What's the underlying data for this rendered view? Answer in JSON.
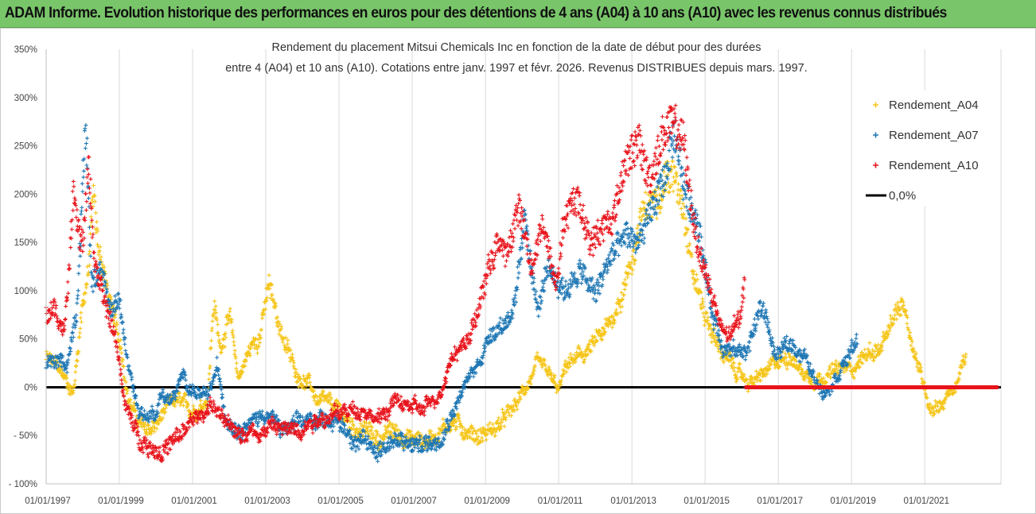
{
  "banner": {
    "title": "ADAM Informe. Evolution historique des performances en euros pour des détentions de 4 ans (A04) à 10 ans (A10) avec les revenus connus distribués"
  },
  "colors": {
    "banner_bg": "#79c66a",
    "A04": "#f5c518",
    "A07": "#1f77b4",
    "A10": "#e8141c",
    "zero_line": "#000000"
  },
  "chart_data": {
    "type": "scatter",
    "title_lines": [
      "Rendement du placement Mitsui Chemicals Inc en fonction de la date de début pour des durées",
      "entre 4 (A04) et 10 ans (A10). Cotations entre janv. 1997 et févr. 2026. Revenus DISTRIBUES depuis mars. 1997."
    ],
    "x_ticks": [
      "01/01/1997",
      "01/01/1999",
      "01/01/2001",
      "01/01/2003",
      "01/01/2005",
      "01/01/2007",
      "01/01/2009",
      "01/01/2011",
      "01/01/2013",
      "01/01/2015",
      "01/01/2017",
      "01/01/2019",
      "01/01/2021"
    ],
    "xlim": [
      "1997-01-01",
      "2023-01-31"
    ],
    "y_ticks": [
      "- 100%",
      "- 50%",
      "0%",
      "50%",
      "100%",
      "150%",
      "200%",
      "250%",
      "300%",
      "350%"
    ],
    "ylim": [
      -100,
      350
    ],
    "grid": "vertical",
    "legend_position": "top-right",
    "legend": [
      "Rendement_A04",
      "Rendement_A07",
      "Rendement_A10",
      "0,0%"
    ],
    "series": [
      {
        "name": "Rendement_A04",
        "x_start": "1997-01-01",
        "x_end": "2022-02-15",
        "points": [
          [
            "1997-01-01",
            30
          ],
          [
            "1997-05-01",
            20
          ],
          [
            "1997-08-01",
            5
          ],
          [
            "1997-10-01",
            -5
          ],
          [
            "1998-01-01",
            90
          ],
          [
            "1998-03-01",
            120
          ],
          [
            "1998-04-15",
            200
          ],
          [
            "1998-06-01",
            150
          ],
          [
            "1998-09-01",
            100
          ],
          [
            "1998-12-01",
            60
          ],
          [
            "1999-01-15",
            45
          ],
          [
            "1999-04-01",
            -10
          ],
          [
            "1999-07-01",
            -35
          ],
          [
            "1999-10-01",
            -45
          ],
          [
            "2000-01-01",
            -40
          ],
          [
            "2000-04-01",
            -25
          ],
          [
            "2000-08-01",
            -15
          ],
          [
            "2000-12-01",
            -25
          ],
          [
            "2001-03-01",
            -20
          ],
          [
            "2001-06-01",
            -10
          ],
          [
            "2001-08-01",
            90
          ],
          [
            "2001-10-01",
            40
          ],
          [
            "2002-01-01",
            75
          ],
          [
            "2002-04-01",
            10
          ],
          [
            "2002-08-01",
            40
          ],
          [
            "2002-11-01",
            55
          ],
          [
            "2003-02-01",
            105
          ],
          [
            "2003-05-01",
            70
          ],
          [
            "2003-08-01",
            40
          ],
          [
            "2003-11-01",
            15
          ],
          [
            "2004-03-01",
            5
          ],
          [
            "2004-06-01",
            -15
          ],
          [
            "2004-10-01",
            -20
          ],
          [
            "2005-01-01",
            -25
          ],
          [
            "2005-05-01",
            -40
          ],
          [
            "2005-10-01",
            -45
          ],
          [
            "2006-02-01",
            -55
          ],
          [
            "2006-06-01",
            -45
          ],
          [
            "2006-10-01",
            -50
          ],
          [
            "2007-02-01",
            -55
          ],
          [
            "2007-06-01",
            -55
          ],
          [
            "2007-10-01",
            -45
          ],
          [
            "2008-02-01",
            -35
          ],
          [
            "2008-07-01",
            -45
          ],
          [
            "2008-11-01",
            -50
          ],
          [
            "2009-03-01",
            -45
          ],
          [
            "2009-07-01",
            -35
          ],
          [
            "2009-11-01",
            -20
          ],
          [
            "2010-03-01",
            5
          ],
          [
            "2010-06-01",
            20
          ],
          [
            "2010-09-01",
            15
          ],
          [
            "2011-01-01",
            -5
          ],
          [
            "2011-04-01",
            25
          ],
          [
            "2011-08-01",
            30
          ],
          [
            "2012-01-01",
            45
          ],
          [
            "2012-05-01",
            60
          ],
          [
            "2012-09-01",
            90
          ],
          [
            "2013-01-01",
            130
          ],
          [
            "2013-04-01",
            175
          ],
          [
            "2013-08-01",
            190
          ],
          [
            "2013-12-01",
            220
          ],
          [
            "2014-03-01",
            215
          ],
          [
            "2014-06-01",
            190
          ],
          [
            "2014-09-01",
            120
          ],
          [
            "2015-01-01",
            75
          ],
          [
            "2015-05-01",
            45
          ],
          [
            "2015-09-01",
            25
          ],
          [
            "2016-01-01",
            10
          ],
          [
            "2016-05-01",
            5
          ],
          [
            "2016-09-01",
            15
          ],
          [
            "2017-01-01",
            25
          ],
          [
            "2017-05-01",
            35
          ],
          [
            "2017-09-01",
            15
          ],
          [
            "2018-01-01",
            10
          ],
          [
            "2018-06-01",
            15
          ],
          [
            "2019-01-01",
            20
          ],
          [
            "2019-06-01",
            35
          ],
          [
            "2019-11-01",
            40
          ],
          [
            "2020-03-01",
            70
          ],
          [
            "2020-06-01",
            90
          ],
          [
            "2020-09-01",
            45
          ],
          [
            "2020-12-01",
            10
          ],
          [
            "2021-03-01",
            -20
          ],
          [
            "2021-07-01",
            -15
          ],
          [
            "2021-11-01",
            0
          ],
          [
            "2022-02-15",
            30
          ]
        ]
      },
      {
        "name": "Rendement_A07",
        "x_start": "1997-01-01",
        "x_end": "2019-03-01",
        "points": [
          [
            "1997-01-01",
            25
          ],
          [
            "1997-05-01",
            25
          ],
          [
            "1997-08-01",
            25
          ],
          [
            "1997-11-01",
            80
          ],
          [
            "1998-02-01",
            275
          ],
          [
            "1998-04-01",
            110
          ],
          [
            "1998-07-01",
            115
          ],
          [
            "1998-10-01",
            80
          ],
          [
            "1999-01-01",
            90
          ],
          [
            "1999-04-01",
            20
          ],
          [
            "1999-07-01",
            -20
          ],
          [
            "1999-10-01",
            -30
          ],
          [
            "2000-01-01",
            -25
          ],
          [
            "2000-03-01",
            -5
          ],
          [
            "2000-06-01",
            -15
          ],
          [
            "2000-10-01",
            10
          ],
          [
            "2001-02-01",
            -5
          ],
          [
            "2001-06-01",
            -15
          ],
          [
            "2001-09-01",
            20
          ],
          [
            "2001-12-01",
            -30
          ],
          [
            "2002-04-01",
            -40
          ],
          [
            "2002-09-01",
            -35
          ],
          [
            "2003-01-01",
            -25
          ],
          [
            "2003-06-01",
            -45
          ],
          [
            "2003-11-01",
            -40
          ],
          [
            "2004-04-01",
            -35
          ],
          [
            "2004-09-01",
            -30
          ],
          [
            "2005-02-01",
            -40
          ],
          [
            "2005-07-01",
            -55
          ],
          [
            "2006-01-01",
            -65
          ],
          [
            "2006-06-01",
            -55
          ],
          [
            "2006-11-01",
            -60
          ],
          [
            "2007-04-01",
            -60
          ],
          [
            "2007-09-01",
            -55
          ],
          [
            "2008-02-01",
            -25
          ],
          [
            "2008-06-01",
            0
          ],
          [
            "2008-10-01",
            20
          ],
          [
            "2009-03-01",
            60
          ],
          [
            "2009-07-01",
            65
          ],
          [
            "2009-11-01",
            90
          ],
          [
            "2010-02-01",
            175
          ],
          [
            "2010-06-01",
            80
          ],
          [
            "2010-10-01",
            120
          ],
          [
            "2011-03-01",
            100
          ],
          [
            "2011-08-01",
            120
          ],
          [
            "2012-01-01",
            95
          ],
          [
            "2012-06-01",
            135
          ],
          [
            "2012-11-01",
            155
          ],
          [
            "2013-03-01",
            150
          ],
          [
            "2013-07-01",
            180
          ],
          [
            "2013-11-01",
            210
          ],
          [
            "2014-03-01",
            255
          ],
          [
            "2014-07-01",
            195
          ],
          [
            "2014-11-01",
            170
          ],
          [
            "2015-03-01",
            80
          ],
          [
            "2015-07-01",
            45
          ],
          [
            "2015-11-01",
            35
          ],
          [
            "2016-03-01",
            40
          ],
          [
            "2016-07-01",
            80
          ],
          [
            "2016-09-01",
            75
          ],
          [
            "2016-12-01",
            30
          ],
          [
            "2017-03-01",
            40
          ],
          [
            "2017-06-01",
            45
          ],
          [
            "2017-10-01",
            30
          ],
          [
            "2018-01-01",
            5
          ],
          [
            "2018-05-01",
            0
          ],
          [
            "2018-09-01",
            20
          ],
          [
            "2019-03-01",
            45
          ]
        ]
      },
      {
        "name": "Rendement_A10",
        "x_start": "1997-01-01",
        "x_end": "2016-02-01",
        "tail_zero_until": "2022-12-31",
        "points": [
          [
            "1997-01-01",
            75
          ],
          [
            "1997-04-01",
            80
          ],
          [
            "1997-07-01",
            55
          ],
          [
            "1997-10-01",
            195
          ],
          [
            "1998-01-01",
            150
          ],
          [
            "1998-03-01",
            230
          ],
          [
            "1998-05-01",
            130
          ],
          [
            "1998-08-01",
            85
          ],
          [
            "1998-11-01",
            60
          ],
          [
            "1999-01-01",
            30
          ],
          [
            "1999-03-01",
            -20
          ],
          [
            "1999-07-01",
            -50
          ],
          [
            "1999-11-01",
            -60
          ],
          [
            "2000-03-01",
            -65
          ],
          [
            "2000-08-01",
            -55
          ],
          [
            "2001-01-01",
            -35
          ],
          [
            "2001-04-01",
            -30
          ],
          [
            "2001-07-01",
            -15
          ],
          [
            "2001-10-01",
            -30
          ],
          [
            "2002-01-01",
            -45
          ],
          [
            "2002-06-01",
            -45
          ],
          [
            "2002-11-01",
            -45
          ],
          [
            "2003-03-01",
            -40
          ],
          [
            "2003-08-01",
            -45
          ],
          [
            "2004-01-01",
            -40
          ],
          [
            "2004-06-01",
            -30
          ],
          [
            "2004-11-01",
            -30
          ],
          [
            "2005-04-01",
            -25
          ],
          [
            "2005-09-01",
            -20
          ],
          [
            "2006-02-01",
            -35
          ],
          [
            "2006-07-01",
            -15
          ],
          [
            "2006-12-01",
            -20
          ],
          [
            "2007-05-01",
            -25
          ],
          [
            "2007-10-01",
            -5
          ],
          [
            "2008-02-01",
            35
          ],
          [
            "2008-06-01",
            45
          ],
          [
            "2008-10-01",
            70
          ],
          [
            "2009-02-01",
            125
          ],
          [
            "2009-05-01",
            150
          ],
          [
            "2009-08-01",
            135
          ],
          [
            "2009-12-01",
            190
          ],
          [
            "2010-04-01",
            120
          ],
          [
            "2010-08-01",
            170
          ],
          [
            "2010-12-01",
            110
          ],
          [
            "2011-03-01",
            175
          ],
          [
            "2011-07-01",
            200
          ],
          [
            "2011-11-01",
            155
          ],
          [
            "2012-03-01",
            165
          ],
          [
            "2012-07-01",
            175
          ],
          [
            "2012-11-01",
            240
          ],
          [
            "2013-03-01",
            250
          ],
          [
            "2013-07-01",
            215
          ],
          [
            "2013-11-01",
            260
          ],
          [
            "2014-03-01",
            275
          ],
          [
            "2014-06-01",
            250
          ],
          [
            "2014-09-01",
            175
          ],
          [
            "2014-12-01",
            130
          ],
          [
            "2015-03-01",
            100
          ],
          [
            "2015-06-01",
            60
          ],
          [
            "2015-09-01",
            50
          ],
          [
            "2015-12-01",
            70
          ],
          [
            "2016-02-01",
            110
          ]
        ]
      }
    ],
    "reference_line": {
      "name": "0,0%",
      "y": 0
    }
  }
}
